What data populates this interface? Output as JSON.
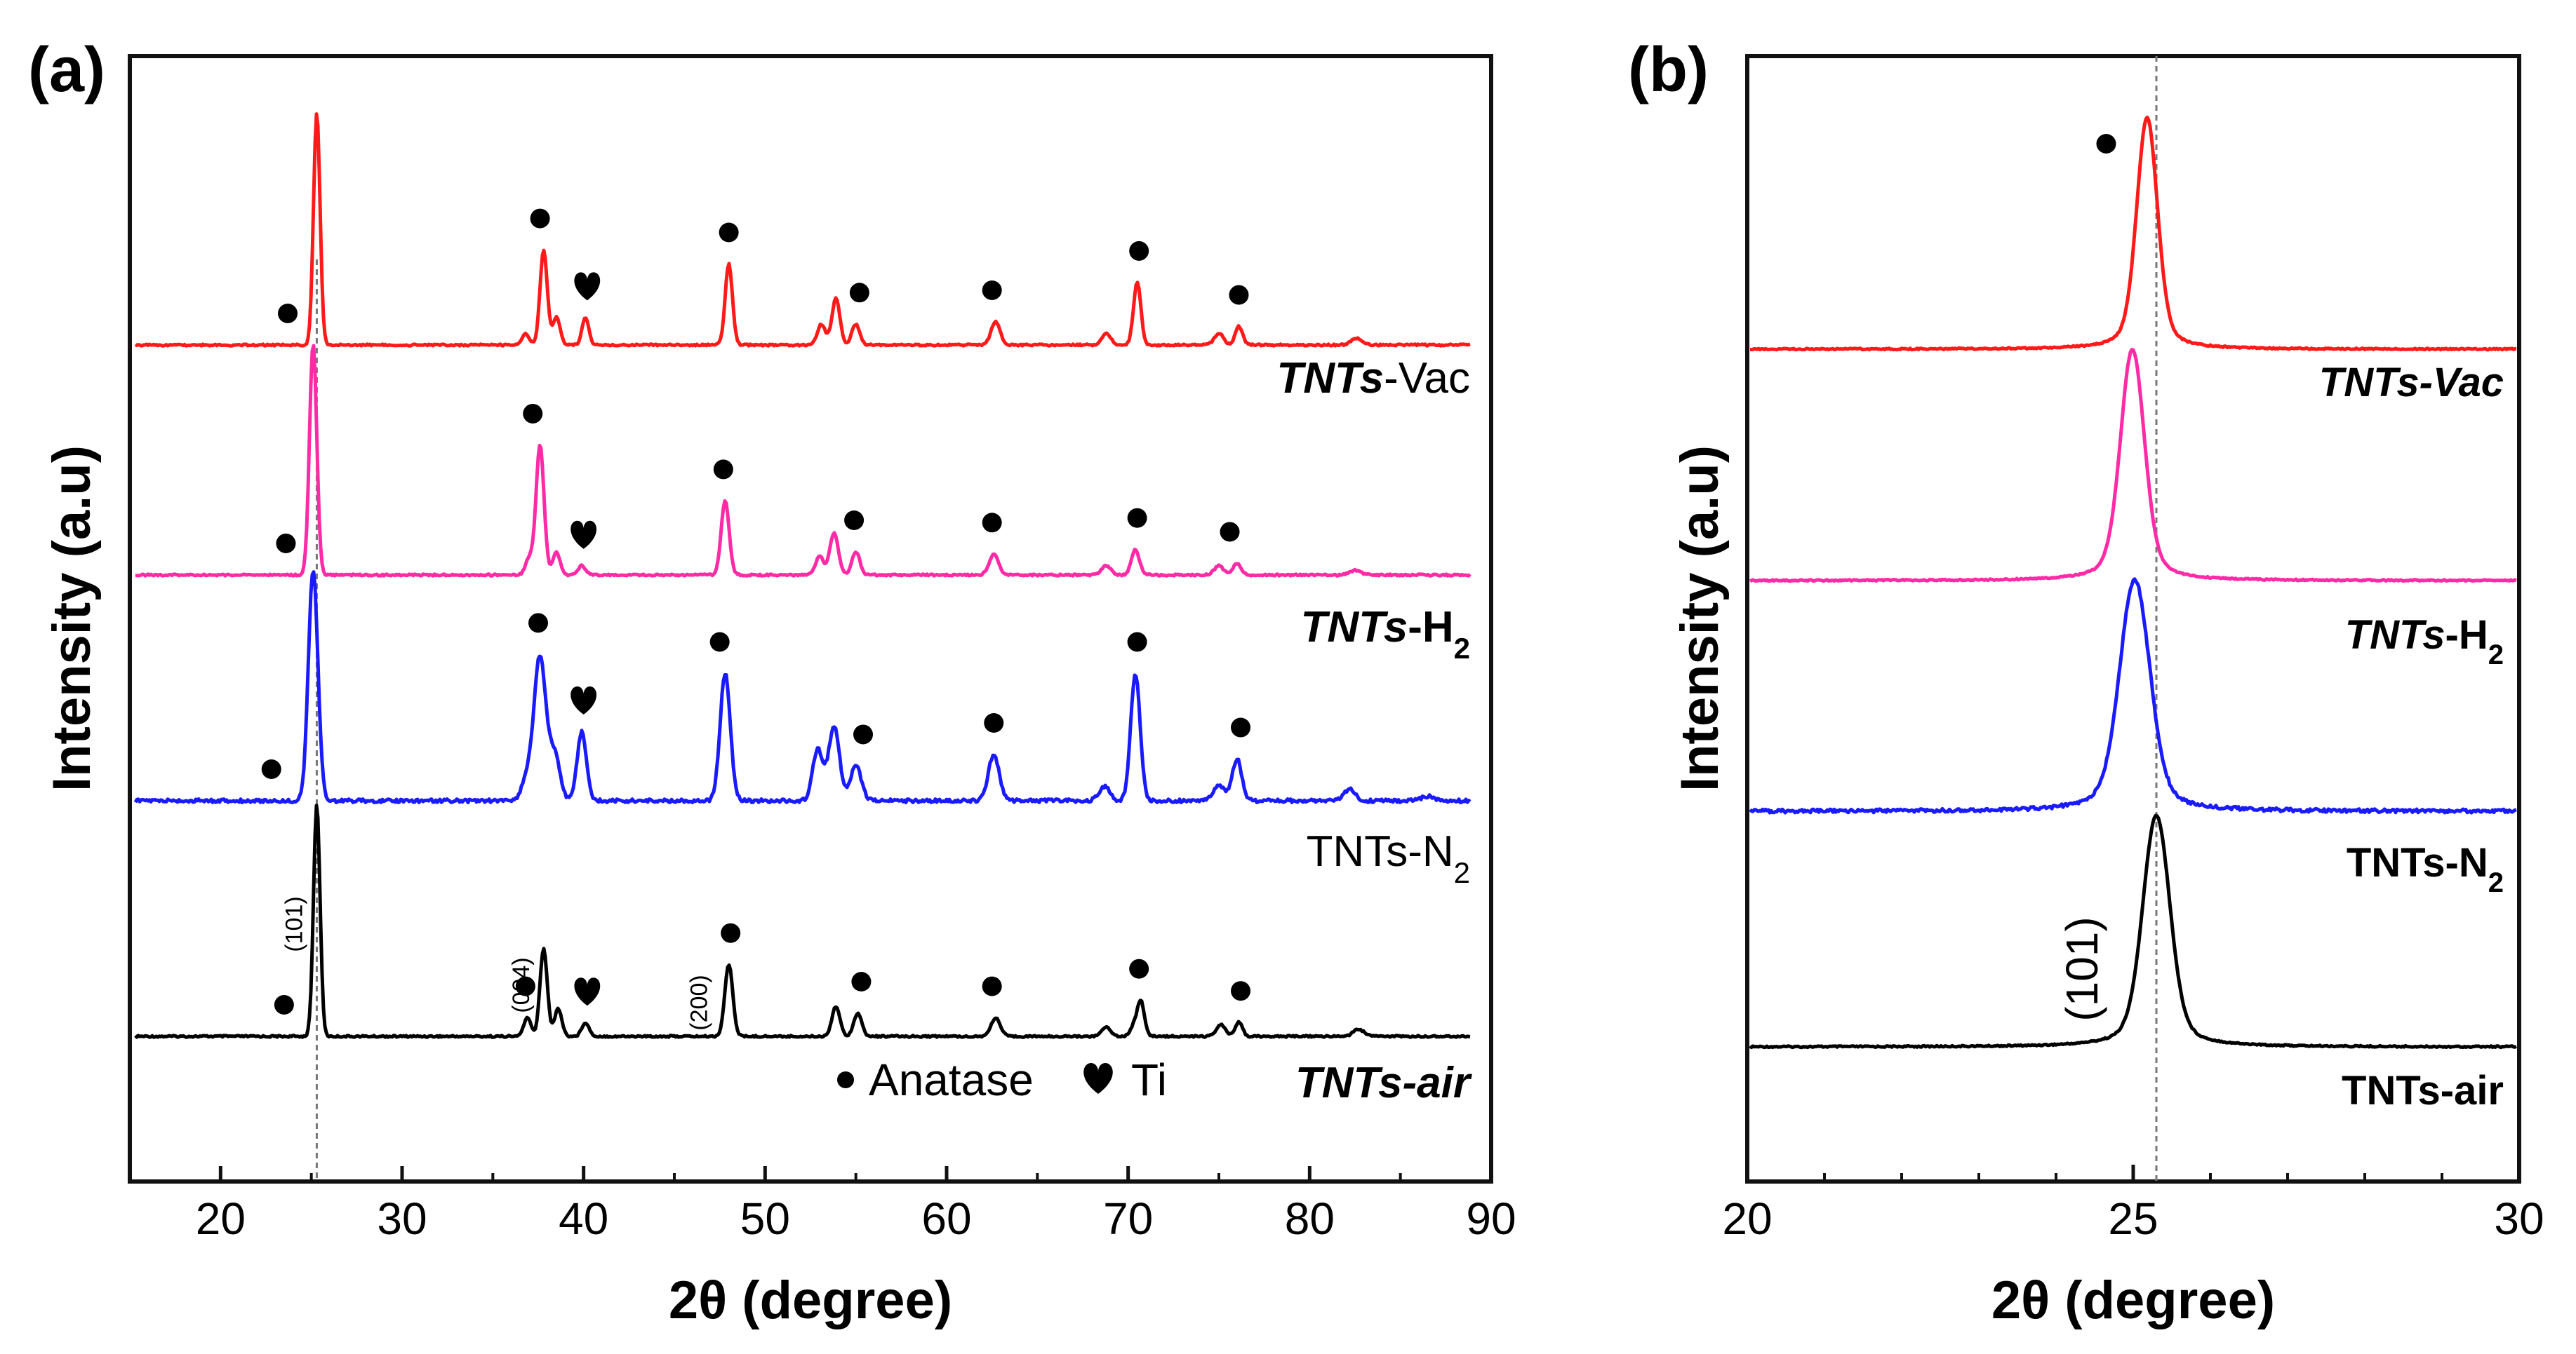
{
  "figure": {
    "legend": {
      "anatase": "Anatase",
      "ti": "Ti"
    }
  },
  "chart_data": [
    {
      "type": "line",
      "panel_label": "(a)",
      "xlabel": "2θ (degree)",
      "ylabel": "Intensity (a.u)",
      "xlim": [
        15,
        90
      ],
      "xticks": [
        20,
        30,
        40,
        50,
        60,
        70,
        80,
        90
      ],
      "reference_line_x": 25.3,
      "series": [
        {
          "name": "TNTs-air",
          "label_italic": "TNTs-air",
          "label_main": "",
          "label_sub": "",
          "color": "#000000",
          "peaks": [
            [
              25.3,
              1.0,
              0.18
            ],
            [
              36.9,
              0.08,
              0.2
            ],
            [
              37.8,
              0.38,
              0.2
            ],
            [
              38.6,
              0.12,
              0.2
            ],
            [
              40.1,
              0.06,
              0.2
            ],
            [
              48.0,
              0.31,
              0.22
            ],
            [
              53.9,
              0.13,
              0.22
            ],
            [
              55.1,
              0.1,
              0.22
            ],
            [
              62.7,
              0.08,
              0.25
            ],
            [
              68.8,
              0.04,
              0.25
            ],
            [
              70.3,
              0.04,
              0.2
            ],
            [
              70.7,
              0.15,
              0.2
            ],
            [
              75.1,
              0.05,
              0.25
            ],
            [
              76.1,
              0.06,
              0.2
            ],
            [
              82.7,
              0.03,
              0.3
            ]
          ],
          "anatase_markers": [
            23.5,
            36.8,
            48.1,
            55.3,
            62.5,
            70.6,
            76.2
          ],
          "ti_markers": [
            40.2
          ]
        },
        {
          "name": "TNTs-N2",
          "label_italic": "",
          "label_main": "TNTs-N",
          "label_sub": "2",
          "color": "#1a1aff",
          "peaks": [
            [
              25.1,
              1.0,
              0.26
            ],
            [
              36.9,
              0.1,
              0.3
            ],
            [
              37.6,
              0.62,
              0.32
            ],
            [
              38.4,
              0.2,
              0.3
            ],
            [
              39.9,
              0.3,
              0.25
            ],
            [
              47.8,
              0.55,
              0.28
            ],
            [
              52.9,
              0.22,
              0.28
            ],
            [
              53.8,
              0.32,
              0.3
            ],
            [
              55.0,
              0.15,
              0.3
            ],
            [
              62.6,
              0.2,
              0.3
            ],
            [
              68.7,
              0.06,
              0.3
            ],
            [
              70.4,
              0.55,
              0.26
            ],
            [
              75.0,
              0.07,
              0.3
            ],
            [
              76.0,
              0.18,
              0.26
            ],
            [
              82.2,
              0.05,
              0.3
            ],
            [
              86.5,
              0.02,
              0.3
            ]
          ],
          "anatase_markers": [
            22.8,
            37.5,
            47.5,
            55.4,
            62.6,
            70.5,
            76.2
          ],
          "ti_markers": [
            40.0
          ]
        },
        {
          "name": "TNTs-H2",
          "label_italic": "TNTs",
          "label_main": "-H",
          "label_sub": "2",
          "color": "#ff2aa6",
          "peaks": [
            [
              25.1,
              1.0,
              0.2
            ],
            [
              37.0,
              0.07,
              0.2
            ],
            [
              37.6,
              0.56,
              0.22
            ],
            [
              38.5,
              0.1,
              0.2
            ],
            [
              39.9,
              0.04,
              0.2
            ],
            [
              47.8,
              0.32,
              0.22
            ],
            [
              53.0,
              0.08,
              0.22
            ],
            [
              53.8,
              0.18,
              0.24
            ],
            [
              55.0,
              0.1,
              0.22
            ],
            [
              62.6,
              0.09,
              0.25
            ],
            [
              68.8,
              0.04,
              0.25
            ],
            [
              70.4,
              0.11,
              0.22
            ],
            [
              75.0,
              0.04,
              0.25
            ],
            [
              76.0,
              0.05,
              0.22
            ],
            [
              82.5,
              0.02,
              0.3
            ]
          ],
          "anatase_markers": [
            23.6,
            37.2,
            47.7,
            54.9,
            62.5,
            70.5,
            75.6
          ],
          "ti_markers": [
            40.0
          ]
        },
        {
          "name": "TNTs-Vac",
          "label_italic": "TNTs",
          "label_main": "-Vac",
          "label_sub": "",
          "color": "#ff1a1a",
          "peaks": [
            [
              25.3,
              1.0,
              0.18
            ],
            [
              36.8,
              0.05,
              0.2
            ],
            [
              37.8,
              0.41,
              0.2
            ],
            [
              38.5,
              0.12,
              0.2
            ],
            [
              40.1,
              0.12,
              0.18
            ],
            [
              48.0,
              0.35,
              0.2
            ],
            [
              53.1,
              0.09,
              0.22
            ],
            [
              53.9,
              0.2,
              0.22
            ],
            [
              55.0,
              0.09,
              0.22
            ],
            [
              62.7,
              0.1,
              0.25
            ],
            [
              68.8,
              0.05,
              0.25
            ],
            [
              70.5,
              0.27,
              0.2
            ],
            [
              75.0,
              0.05,
              0.25
            ],
            [
              76.1,
              0.08,
              0.2
            ],
            [
              82.6,
              0.03,
              0.3
            ]
          ],
          "anatase_markers": [
            23.7,
            37.6,
            48.0,
            55.2,
            62.5,
            70.6,
            76.1
          ],
          "ti_markers": [
            40.2
          ]
        }
      ],
      "annotations": [
        {
          "text": "(101)",
          "x": 24.5
        },
        {
          "text": "(004)",
          "x": 37.0
        },
        {
          "text": "(200)",
          "x": 46.8
        }
      ]
    },
    {
      "type": "line",
      "panel_label": "(b)",
      "xlabel": "2θ (degree)",
      "ylabel": "Intensity (a.u)",
      "xlim": [
        20,
        30
      ],
      "xticks": [
        20,
        25,
        30
      ],
      "reference_line_x": 25.3,
      "series": [
        {
          "name": "TNTs-air",
          "label_italic": "",
          "label_main": "TNTs-air",
          "label_sub": "",
          "color": "#000000",
          "peak_x": 25.3,
          "peak_sigma": 0.17,
          "peak_height": 1.0
        },
        {
          "name": "TNTs-N2",
          "label_italic": "",
          "label_main": "TNTs-N",
          "label_sub": "2",
          "color": "#1a1aff",
          "peak_x": 25.02,
          "peak_sigma": 0.19,
          "peak_height": 1.0
        },
        {
          "name": "TNTs-H2",
          "label_italic": "TNTs",
          "label_main": "-H",
          "label_sub": "2",
          "color": "#ff2aa6",
          "peak_x": 24.99,
          "peak_sigma": 0.15,
          "peak_height": 1.0
        },
        {
          "name": "TNTs-Vac",
          "label_italic": "TNTs-Vac",
          "label_main": "",
          "label_sub": "",
          "color": "#ff1a1a",
          "peak_x": 25.18,
          "peak_sigma": 0.13,
          "peak_height": 1.0
        }
      ],
      "annotations": [
        {
          "text": "(101)",
          "x": 24.9
        }
      ],
      "anatase_marker_x": 24.65
    }
  ]
}
